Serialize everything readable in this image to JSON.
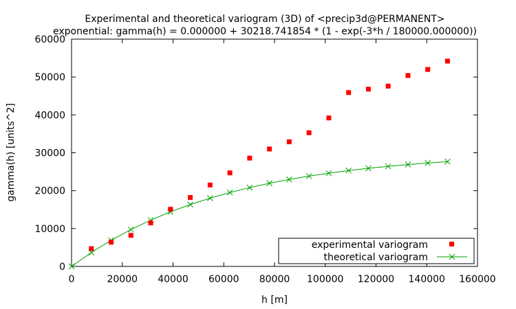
{
  "chart_data": {
    "type": "scatter",
    "title": "Experimental and theoretical variogram (3D) of <precip3d@PERMANENT>",
    "subtitle": "exponential: gamma(h) = 0.000000 + 30218.741854 * (1 - exp(-3*h / 180000.000000))",
    "xlabel": "h [m]",
    "ylabel": "gamma(h) [units^2]",
    "xlim": [
      0,
      160000
    ],
    "ylim": [
      0,
      60000
    ],
    "x_ticks": [
      0,
      20000,
      40000,
      60000,
      80000,
      100000,
      120000,
      140000,
      160000
    ],
    "y_ticks": [
      0,
      10000,
      20000,
      30000,
      40000,
      50000,
      60000
    ],
    "x_tick_labels": [
      "0",
      "20000",
      "40000",
      "60000",
      "80000",
      "100000",
      "120000",
      "140000",
      "160000"
    ],
    "y_tick_labels": [
      "0",
      "10000",
      "20000",
      "30000",
      "40000",
      "50000",
      "60000"
    ],
    "legend_position": "bottom-right",
    "grid": false,
    "series": [
      {
        "name": "experimental variogram",
        "kind": "points",
        "marker": "square",
        "color": "#ff0000",
        "x": [
          7800,
          15600,
          23400,
          31200,
          39000,
          46800,
          54600,
          62400,
          70200,
          78000,
          85800,
          93600,
          101400,
          109200,
          117000,
          124800,
          132600,
          140400,
          148200
        ],
        "y": [
          4700,
          6400,
          8200,
          11500,
          15100,
          18200,
          21500,
          24700,
          28600,
          31000,
          32900,
          35300,
          39200,
          45900,
          46800,
          47600,
          50400,
          52000,
          54200
        ]
      },
      {
        "name": "theoretical variogram",
        "kind": "linespoints",
        "marker": "x",
        "color": "#00a000",
        "x": [
          0,
          7800,
          15600,
          23400,
          31200,
          39000,
          46800,
          54600,
          62400,
          70200,
          78000,
          85800,
          93600,
          101400,
          109200,
          117000,
          124800,
          132600,
          140400,
          148200
        ],
        "y": [
          0,
          3671,
          6897,
          9731,
          12221,
          14409,
          16331,
          18020,
          19504,
          20808,
          21954,
          22960,
          23845,
          24622,
          25305,
          25905,
          26432,
          26896,
          27303,
          27660
        ]
      }
    ]
  }
}
